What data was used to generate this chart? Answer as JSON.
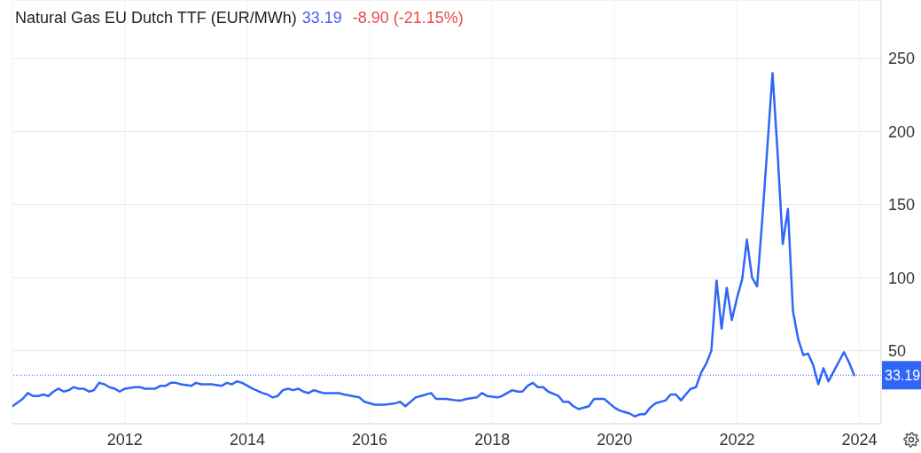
{
  "chart_data": {
    "type": "line",
    "title": "Natural Gas EU Dutch TTF (EUR/MWh)",
    "annotations": [
      "33.19",
      "-8.90 (-21.15%)"
    ],
    "x": [
      "2010-03",
      "2010-05",
      "2010-06",
      "2010-07",
      "2010-08",
      "2010-09",
      "2010-10",
      "2010-11",
      "2010-12",
      "2011-01",
      "2011-02",
      "2011-03",
      "2011-04",
      "2011-05",
      "2011-06",
      "2011-07",
      "2011-08",
      "2011-09",
      "2011-10",
      "2011-11",
      "2011-12",
      "2012-01",
      "2012-03",
      "2012-04",
      "2012-05",
      "2012-07",
      "2012-08",
      "2012-09",
      "2012-10",
      "2012-11",
      "2012-12",
      "2013-02",
      "2013-03",
      "2013-04",
      "2013-06",
      "2013-08",
      "2013-09",
      "2013-10",
      "2013-11",
      "2013-12",
      "2014-02",
      "2014-04",
      "2014-05",
      "2014-06",
      "2014-07",
      "2014-08",
      "2014-09",
      "2014-10",
      "2014-11",
      "2014-12",
      "2015-01",
      "2015-02",
      "2015-03",
      "2015-04",
      "2015-07",
      "2015-08",
      "2015-11",
      "2015-12",
      "2016-02",
      "2016-04",
      "2016-06",
      "2016-07",
      "2016-08",
      "2016-10",
      "2016-11",
      "2017-01",
      "2017-02",
      "2017-04",
      "2017-06",
      "2017-07",
      "2017-08",
      "2017-10",
      "2017-11",
      "2017-12",
      "2018-02",
      "2018-03",
      "2018-05",
      "2018-06",
      "2018-07",
      "2018-08",
      "2018-09",
      "2018-10",
      "2018-11",
      "2018-12",
      "2019-02",
      "2019-03",
      "2019-04",
      "2019-05",
      "2019-06",
      "2019-08",
      "2019-09",
      "2019-11",
      "2020-01",
      "2020-02",
      "2020-03",
      "2020-04",
      "2020-05",
      "2020-06",
      "2020-07",
      "2020-08",
      "2020-09",
      "2020-11",
      "2020-12",
      "2021-01",
      "2021-02",
      "2021-03",
      "2021-04",
      "2021-05",
      "2021-06",
      "2021-07",
      "2021-08",
      "2021-09",
      "2021-10",
      "2021-11",
      "2021-12",
      "2022-01",
      "2022-02",
      "2022-03",
      "2022-04",
      "2022-05",
      "2022-06",
      "2022-07",
      "2022-08",
      "2022-09",
      "2022-10",
      "2022-11",
      "2022-12",
      "2023-01",
      "2023-02",
      "2023-03",
      "2023-04",
      "2023-05",
      "2023-06",
      "2023-07",
      "2023-10",
      "2023-11",
      "2023-12"
    ],
    "series": [
      {
        "color": "#2f66f6",
        "values": [
          12,
          17,
          21,
          19,
          19,
          20,
          19,
          22,
          24,
          22,
          23,
          25,
          24,
          24,
          22,
          23,
          28,
          27,
          25,
          24,
          22,
          24,
          25,
          25,
          24,
          24,
          26,
          26,
          28,
          28,
          27,
          26,
          28,
          27,
          27,
          26,
          28,
          27,
          29,
          28,
          24,
          21,
          20,
          18,
          19,
          23,
          24,
          23,
          24,
          22,
          21,
          23,
          22,
          21,
          21,
          20,
          18,
          15,
          13,
          13,
          14,
          15,
          12,
          18,
          19,
          21,
          17,
          17,
          16,
          16,
          17,
          18,
          21,
          19,
          18,
          19,
          23,
          22,
          22,
          26,
          28,
          25,
          25,
          22,
          19,
          15,
          15,
          12,
          10,
          12,
          17,
          17,
          11,
          9,
          8,
          7,
          5,
          6.5,
          6.5,
          11,
          14,
          16,
          20,
          20,
          16,
          20,
          24,
          25,
          35,
          41,
          50,
          98,
          65,
          93,
          71,
          86,
          99,
          126,
          100,
          94,
          140,
          189,
          240,
          184,
          123,
          147,
          77,
          58,
          47,
          48,
          40,
          27,
          38,
          29,
          49,
          42,
          33.19
        ]
      }
    ],
    "xlim": [
      "2010-03",
      "2024-05-10"
    ],
    "xticks": [
      "2012",
      "2014",
      "2016",
      "2018",
      "2020",
      "2022",
      "2024"
    ],
    "ylim": [
      0,
      290
    ],
    "yticks": [
      50,
      100,
      150,
      200,
      250
    ],
    "grid": true,
    "ref_lines": [
      {
        "axis": "y",
        "value": 33.19,
        "label": "33.19",
        "color": "#2f66f6",
        "line_style": "dotted"
      }
    ]
  }
}
